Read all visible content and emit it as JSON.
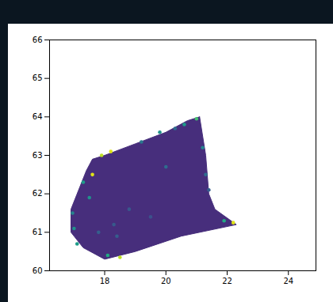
{
  "chart_data": {
    "type": "scatter",
    "xlim": [
      16.2,
      24.9
    ],
    "ylim": [
      60,
      66
    ],
    "xticks": [
      18,
      20,
      22,
      24
    ],
    "yticks": [
      60,
      61,
      62,
      63,
      64,
      65,
      66
    ],
    "grid": false,
    "color_range": [
      0,
      1
    ],
    "region": {
      "value": 0.13,
      "x": [
        21.1,
        21.3,
        21.4,
        21.6,
        22.3,
        20.5,
        19.0,
        18.0,
        17.3,
        16.9,
        16.9,
        17.1,
        17.4,
        17.6,
        18.0,
        19.0,
        20.0,
        20.7
      ],
      "y": [
        64.0,
        63.0,
        62.0,
        61.6,
        61.2,
        60.9,
        60.5,
        60.3,
        60.6,
        61.0,
        61.6,
        62.0,
        62.6,
        62.9,
        63.0,
        63.3,
        63.6,
        63.9
      ]
    },
    "points": {
      "x": [
        17.6,
        17.9,
        18.2,
        17.3,
        17.5,
        21.0,
        20.6,
        21.2,
        22.2,
        21.9,
        18.5,
        18.1,
        17.0,
        16.95,
        17.1,
        19.2,
        19.8,
        20.3,
        21.3,
        21.4,
        17.8,
        18.3,
        19.5,
        20.0,
        18.4,
        18.8
      ],
      "y": [
        62.5,
        63.0,
        63.1,
        62.3,
        61.9,
        63.95,
        63.8,
        63.2,
        61.25,
        61.3,
        60.35,
        60.4,
        61.1,
        61.5,
        60.7,
        63.35,
        63.6,
        63.7,
        62.5,
        62.1,
        61.0,
        61.2,
        61.4,
        62.7,
        60.9,
        61.6
      ],
      "values": [
        0.95,
        0.9,
        0.95,
        0.55,
        0.5,
        0.7,
        0.55,
        0.45,
        0.95,
        0.6,
        0.9,
        0.6,
        0.5,
        0.45,
        0.55,
        0.4,
        0.5,
        0.35,
        0.35,
        0.3,
        0.3,
        0.28,
        0.25,
        0.35,
        0.3,
        0.27
      ]
    }
  }
}
